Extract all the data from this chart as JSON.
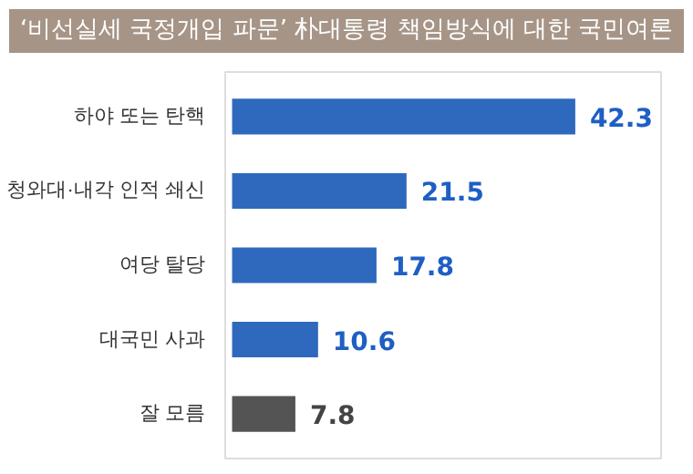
{
  "chart_data": {
    "type": "bar",
    "orientation": "horizontal",
    "title": "‘비선실세 국정개입 파문’ 朴대통령 책임방식에 대한 국민여론",
    "categories": [
      "하야 또는 탄핵",
      "청와대·내각 인적 쇄신",
      "여당 탈당",
      "대국민 사과",
      "잘 모름"
    ],
    "values": [
      42.3,
      21.5,
      17.8,
      10.6,
      7.8
    ],
    "colors": [
      "#2f69bd",
      "#2f69bd",
      "#2f69bd",
      "#2f69bd",
      "#545454"
    ],
    "data_labels": true,
    "grid": false
  }
}
